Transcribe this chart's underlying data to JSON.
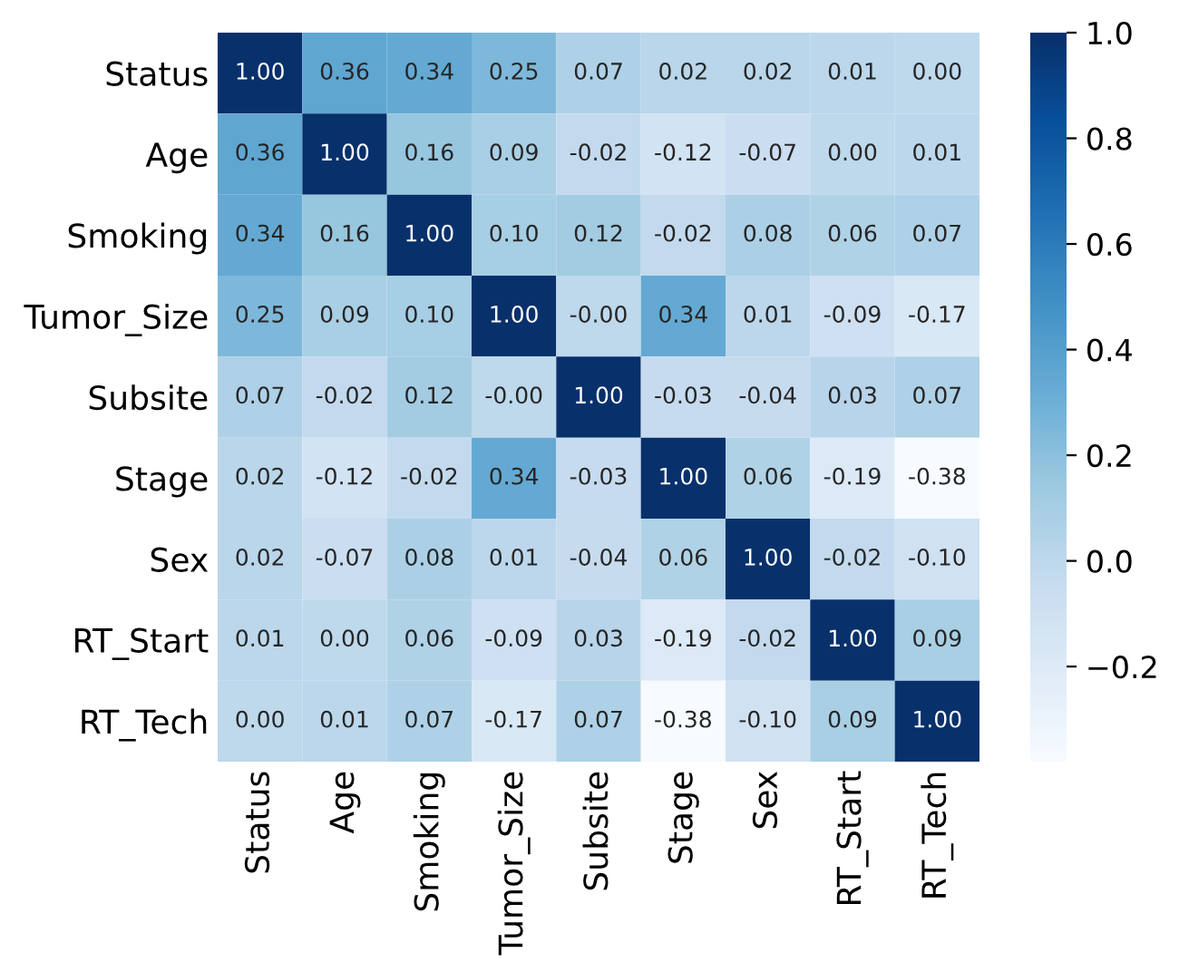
{
  "chart_data": {
    "type": "heatmap",
    "categories": [
      "Status",
      "Age",
      "Smoking",
      "Tumor_Size",
      "Subsite",
      "Stage",
      "Sex",
      "RT_Start",
      "RT_Tech"
    ],
    "y_categories": [
      "Status",
      "Age",
      "Smoking",
      "Tumor_Size",
      "Subsite",
      "Stage",
      "Sex",
      "RT_Start",
      "RT_Tech"
    ],
    "cells": [
      [
        1.0,
        0.36,
        0.34,
        0.25,
        0.07,
        0.02,
        0.02,
        0.01,
        0.0
      ],
      [
        0.36,
        1.0,
        0.16,
        0.09,
        -0.02,
        -0.12,
        -0.07,
        0.0,
        0.01
      ],
      [
        0.34,
        0.16,
        1.0,
        0.1,
        0.12,
        -0.02,
        0.08,
        0.06,
        0.07
      ],
      [
        0.25,
        0.09,
        0.1,
        1.0,
        -0.0,
        0.34,
        0.01,
        -0.09,
        -0.17
      ],
      [
        0.07,
        -0.02,
        0.12,
        -0.0,
        1.0,
        -0.03,
        -0.04,
        0.03,
        0.07
      ],
      [
        0.02,
        -0.12,
        -0.02,
        0.34,
        -0.03,
        1.0,
        0.06,
        -0.19,
        -0.38
      ],
      [
        0.02,
        -0.07,
        0.08,
        0.01,
        -0.04,
        0.06,
        1.0,
        -0.02,
        -0.1
      ],
      [
        0.01,
        0.0,
        0.06,
        -0.09,
        0.03,
        -0.19,
        -0.02,
        1.0,
        0.09
      ],
      [
        0.0,
        0.01,
        0.07,
        -0.17,
        0.07,
        -0.38,
        -0.1,
        0.09,
        1.0
      ]
    ],
    "cell_labels": [
      [
        "1.00",
        "0.36",
        "0.34",
        "0.25",
        "0.07",
        "0.02",
        "0.02",
        "0.01",
        "0.00"
      ],
      [
        "0.36",
        "1.00",
        "0.16",
        "0.09",
        "-0.02",
        "-0.12",
        "-0.07",
        "0.00",
        "0.01"
      ],
      [
        "0.34",
        "0.16",
        "1.00",
        "0.10",
        "0.12",
        "-0.02",
        "0.08",
        "0.06",
        "0.07"
      ],
      [
        "0.25",
        "0.09",
        "0.10",
        "1.00",
        "-0.00",
        "0.34",
        "0.01",
        "-0.09",
        "-0.17"
      ],
      [
        "0.07",
        "-0.02",
        "0.12",
        "-0.00",
        "1.00",
        "-0.03",
        "-0.04",
        "0.03",
        "0.07"
      ],
      [
        "0.02",
        "-0.12",
        "-0.02",
        "0.34",
        "-0.03",
        "1.00",
        "0.06",
        "-0.19",
        "-0.38"
      ],
      [
        "0.02",
        "-0.07",
        "0.08",
        "0.01",
        "-0.04",
        "0.06",
        "1.00",
        "-0.02",
        "-0.10"
      ],
      [
        "0.01",
        "0.00",
        "0.06",
        "-0.09",
        "0.03",
        "-0.19",
        "-0.02",
        "1.00",
        "0.09"
      ],
      [
        "0.00",
        "0.01",
        "0.07",
        "-0.17",
        "0.07",
        "-0.38",
        "-0.10",
        "0.09",
        "1.00"
      ]
    ],
    "clim": [
      -0.38,
      1.0
    ],
    "cticks": [
      {
        "value": -0.2,
        "label": "−0.2"
      },
      {
        "value": 0.0,
        "label": "0.0"
      },
      {
        "value": 0.2,
        "label": "0.2"
      },
      {
        "value": 0.4,
        "label": "0.4"
      },
      {
        "value": 0.6,
        "label": "0.6"
      },
      {
        "value": 0.8,
        "label": "0.8"
      },
      {
        "value": 1.0,
        "label": "1.0"
      }
    ]
  }
}
